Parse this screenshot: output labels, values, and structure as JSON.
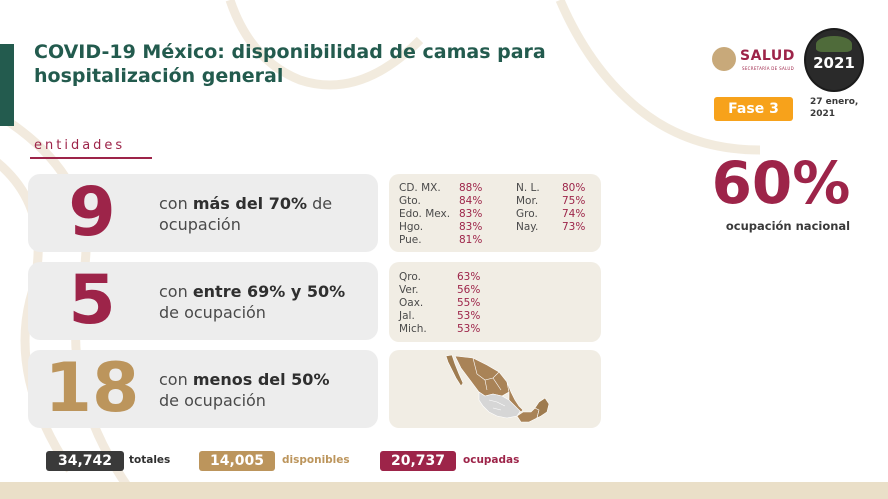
{
  "header": {
    "title_line1": "COVID-19 México: disponibilidad de camas para",
    "title_line2": "hospitalización general",
    "salud_logo_text": "SALUD",
    "salud_logo_subtext": "SECRETARÍA DE SALUD",
    "anniversary_year": "2021",
    "phase_label": "Fase 3",
    "date_line1": "27 enero,",
    "date_line2": "2021"
  },
  "entidades_label": "entidades",
  "groups": [
    {
      "count": "9",
      "desc_prefix": "con ",
      "desc_bold": "más del 70%",
      "desc_suffix": " de",
      "desc_line2": "ocupación",
      "color": "#9d2449"
    },
    {
      "count": "5",
      "desc_prefix": "con ",
      "desc_bold": "entre 69% y 50%",
      "desc_suffix": "",
      "desc_line2": "de ocupación",
      "color": "#9d2449"
    },
    {
      "count": "18",
      "desc_prefix": "con ",
      "desc_bold": "menos del 50%",
      "desc_suffix": "",
      "desc_line2": "de ocupación",
      "color": "#bc955c"
    }
  ],
  "high_states": [
    {
      "state": "CD. MX.",
      "pct": "88%"
    },
    {
      "state": "Gto.",
      "pct": "84%"
    },
    {
      "state": "Edo. Mex.",
      "pct": "83%"
    },
    {
      "state": "Hgo.",
      "pct": "83%"
    },
    {
      "state": "Pue.",
      "pct": "81%"
    },
    {
      "state": "N. L.",
      "pct": "80%"
    },
    {
      "state": "Mor.",
      "pct": "75%"
    },
    {
      "state": "Gro.",
      "pct": "74%"
    },
    {
      "state": "Nay.",
      "pct": "73%"
    }
  ],
  "mid_states": [
    {
      "state": "Qro.",
      "pct": "63%"
    },
    {
      "state": "Ver.",
      "pct": "56%"
    },
    {
      "state": "Oax.",
      "pct": "55%"
    },
    {
      "state": "Jal.",
      "pct": "53%"
    },
    {
      "state": "Mich.",
      "pct": "53%"
    }
  ],
  "national": {
    "value": "60%",
    "label": "ocupación nacional"
  },
  "totals": {
    "total_value": "34,742",
    "total_label": "totales",
    "available_value": "14,005",
    "available_label": "disponibles",
    "occupied_value": "20,737",
    "occupied_label": "ocupadas"
  },
  "colors": {
    "green": "#235b4e",
    "wine": "#9d2449",
    "gold": "#bc955c",
    "orange": "#f7a21b",
    "dark": "#3a3a3a"
  },
  "icons": {
    "map": "mexico-map-icon",
    "salud": "salud-logo",
    "anniversary": "anniversary-2021-logo"
  }
}
